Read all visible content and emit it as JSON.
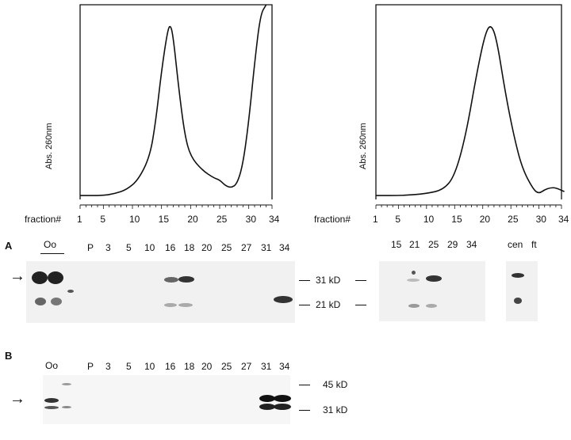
{
  "chart_data": [
    {
      "type": "line",
      "title": "",
      "ylabel": "Abs. 260nm",
      "xlabel": "fraction#",
      "xticks": [
        "1",
        "5",
        "10",
        "15",
        "20",
        "25",
        "30",
        "34"
      ],
      "points": [
        [
          1,
          0.02
        ],
        [
          5,
          0.02
        ],
        [
          7,
          0.03
        ],
        [
          9,
          0.05
        ],
        [
          11,
          0.1
        ],
        [
          13,
          0.22
        ],
        [
          14,
          0.4
        ],
        [
          15,
          0.66
        ],
        [
          16,
          0.86
        ],
        [
          16.5,
          0.9
        ],
        [
          17,
          0.84
        ],
        [
          18,
          0.56
        ],
        [
          19,
          0.33
        ],
        [
          20,
          0.22
        ],
        [
          22,
          0.15
        ],
        [
          24,
          0.11
        ],
        [
          25,
          0.1
        ],
        [
          26,
          0.07
        ],
        [
          27,
          0.06
        ],
        [
          28,
          0.08
        ],
        [
          29,
          0.18
        ],
        [
          30,
          0.4
        ],
        [
          31,
          0.7
        ],
        [
          32,
          0.95
        ],
        [
          33,
          1.0
        ]
      ]
    },
    {
      "type": "line",
      "title": "",
      "ylabel": "Abs. 260nm",
      "xlabel": "fraction#",
      "xticks": [
        "1",
        "5",
        "10",
        "15",
        "20",
        "25",
        "30",
        "34"
      ],
      "points": [
        [
          1,
          0.02
        ],
        [
          6,
          0.02
        ],
        [
          10,
          0.03
        ],
        [
          13,
          0.05
        ],
        [
          15,
          0.12
        ],
        [
          17,
          0.33
        ],
        [
          19,
          0.66
        ],
        [
          20.5,
          0.86
        ],
        [
          21.5,
          0.9
        ],
        [
          22.5,
          0.82
        ],
        [
          24,
          0.55
        ],
        [
          25.5,
          0.33
        ],
        [
          27,
          0.16
        ],
        [
          29,
          0.05
        ],
        [
          30,
          0.03
        ],
        [
          31,
          0.05
        ],
        [
          32,
          0.06
        ],
        [
          33,
          0.06
        ],
        [
          34.5,
          0.04
        ]
      ]
    }
  ],
  "panel_a": {
    "label": "A",
    "oo_label": "Oo",
    "lanes": [
      "P",
      "3",
      "5",
      "10",
      "16",
      "18",
      "20",
      "25",
      "27",
      "31",
      "34"
    ],
    "markers": [
      "31 kD",
      "21 kD"
    ],
    "right_lanes": [
      "15",
      "21",
      "25",
      "29",
      "34"
    ],
    "right_extra": [
      "cen",
      "ft"
    ]
  },
  "panel_b": {
    "label": "B",
    "oo_label": "Oo",
    "lanes": [
      "P",
      "3",
      "5",
      "10",
      "16",
      "18",
      "20",
      "25",
      "27",
      "31",
      "34"
    ],
    "markers": [
      "45 kD",
      "31 kD"
    ]
  },
  "arrow_glyph": "→"
}
